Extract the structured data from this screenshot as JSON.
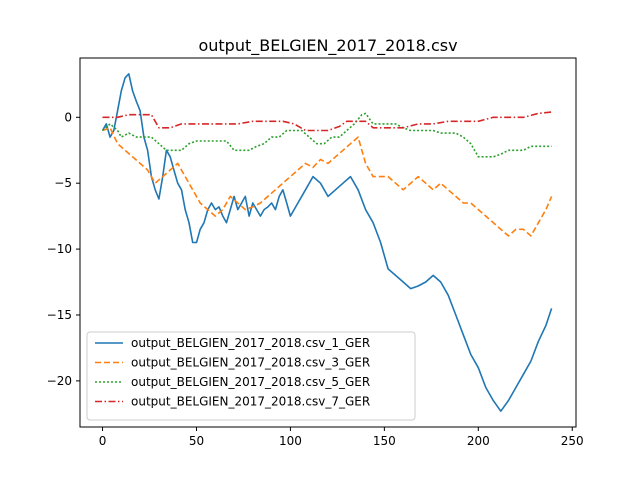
{
  "chart_data": {
    "type": "line",
    "title": "output_BELGIEN_2017_2018.csv",
    "xlabel": "",
    "ylabel": "",
    "xlim": [
      -12,
      252
    ],
    "ylim": [
      -23.5,
      4.5
    ],
    "xticks": [
      0,
      50,
      100,
      150,
      200,
      250
    ],
    "yticks": [
      0,
      -5,
      -10,
      -15,
      -20
    ],
    "xtick_labels": [
      "0",
      "50",
      "100",
      "150",
      "200",
      "250"
    ],
    "ytick_labels": [
      "0",
      "−5",
      "−10",
      "−15",
      "−20"
    ],
    "grid": false,
    "legend_position": "lower-left",
    "series": [
      {
        "name": "output_BELGIEN_2017_2018.csv_1_GER",
        "color": "#1f77b4",
        "style": "solid",
        "x": [
          0,
          2,
          4,
          6,
          8,
          10,
          12,
          14,
          16,
          18,
          20,
          22,
          24,
          26,
          28,
          30,
          32,
          34,
          36,
          38,
          40,
          42,
          44,
          46,
          48,
          50,
          52,
          54,
          56,
          58,
          60,
          62,
          64,
          66,
          68,
          70,
          72,
          74,
          76,
          78,
          80,
          82,
          84,
          86,
          88,
          90,
          92,
          94,
          96,
          98,
          100,
          104,
          108,
          112,
          116,
          120,
          124,
          128,
          132,
          136,
          140,
          144,
          148,
          152,
          156,
          160,
          164,
          168,
          172,
          176,
          180,
          184,
          188,
          192,
          196,
          200,
          204,
          208,
          212,
          216,
          220,
          224,
          228,
          232,
          236,
          239
        ],
        "y": [
          -1.0,
          -0.5,
          -1.5,
          -1.0,
          0.5,
          2.0,
          3.0,
          3.3,
          2.0,
          1.2,
          0.5,
          -1.5,
          -2.5,
          -4.5,
          -5.5,
          -6.2,
          -4.5,
          -2.5,
          -3.0,
          -4.0,
          -5.0,
          -5.5,
          -7.0,
          -8.0,
          -9.5,
          -9.5,
          -8.5,
          -8.0,
          -7.0,
          -6.5,
          -7.0,
          -6.8,
          -7.5,
          -8.0,
          -7.0,
          -6.0,
          -7.0,
          -6.5,
          -6.0,
          -7.5,
          -6.5,
          -7.0,
          -7.5,
          -7.0,
          -6.8,
          -6.5,
          -7.0,
          -6.0,
          -5.5,
          -6.5,
          -7.5,
          -6.5,
          -5.5,
          -4.5,
          -5.0,
          -6.0,
          -5.5,
          -5.0,
          -4.5,
          -5.5,
          -7.0,
          -8.0,
          -9.5,
          -11.5,
          -12.0,
          -12.5,
          -13.0,
          -12.8,
          -12.5,
          -12.0,
          -12.5,
          -13.5,
          -15.0,
          -16.5,
          -18.0,
          -19.0,
          -20.5,
          -21.5,
          -22.3,
          -21.5,
          -20.5,
          -19.5,
          -18.5,
          -17.0,
          -15.8,
          -14.5
        ]
      },
      {
        "name": "output_BELGIEN_2017_2018.csv_3_GER",
        "color": "#ff7f0e",
        "style": "dashed",
        "x": [
          0,
          4,
          8,
          12,
          16,
          20,
          24,
          28,
          32,
          36,
          40,
          44,
          48,
          52,
          56,
          60,
          64,
          68,
          72,
          76,
          80,
          84,
          88,
          92,
          96,
          100,
          104,
          108,
          112,
          116,
          120,
          124,
          128,
          132,
          136,
          140,
          144,
          148,
          152,
          156,
          160,
          164,
          168,
          172,
          176,
          180,
          184,
          188,
          192,
          196,
          200,
          204,
          208,
          212,
          216,
          220,
          224,
          228,
          232,
          236,
          239
        ],
        "y": [
          -1.0,
          -0.8,
          -2.0,
          -2.5,
          -3.0,
          -3.5,
          -4.0,
          -5.0,
          -4.5,
          -4.0,
          -3.5,
          -4.5,
          -5.5,
          -6.5,
          -7.0,
          -7.5,
          -7.0,
          -6.0,
          -6.5,
          -7.0,
          -6.8,
          -6.5,
          -6.0,
          -5.5,
          -5.0,
          -4.5,
          -4.0,
          -3.5,
          -3.8,
          -3.2,
          -3.5,
          -3.0,
          -2.5,
          -2.0,
          -1.5,
          -3.5,
          -4.5,
          -4.5,
          -4.5,
          -5.0,
          -5.5,
          -5.0,
          -4.5,
          -5.0,
          -5.5,
          -5.0,
          -5.5,
          -6.0,
          -6.5,
          -6.5,
          -7.0,
          -7.5,
          -8.0,
          -8.5,
          -9.0,
          -8.5,
          -8.5,
          -9.0,
          -8.0,
          -7.0,
          -6.0
        ]
      },
      {
        "name": "output_BELGIEN_2017_2018.csv_5_GER",
        "color": "#2ca02c",
        "style": "dotted",
        "x": [
          0,
          4,
          8,
          10,
          14,
          18,
          22,
          26,
          30,
          34,
          38,
          42,
          46,
          50,
          54,
          58,
          62,
          66,
          70,
          74,
          78,
          82,
          86,
          90,
          94,
          98,
          102,
          106,
          110,
          114,
          118,
          122,
          126,
          130,
          134,
          138,
          140,
          144,
          148,
          152,
          156,
          160,
          164,
          168,
          172,
          176,
          180,
          184,
          188,
          192,
          196,
          200,
          204,
          208,
          212,
          216,
          220,
          224,
          228,
          232,
          236,
          239
        ],
        "y": [
          -1.0,
          -0.5,
          -1.0,
          -1.5,
          -1.2,
          -1.5,
          -1.5,
          -1.5,
          -2.0,
          -2.5,
          -2.5,
          -2.5,
          -2.0,
          -1.8,
          -1.8,
          -1.8,
          -1.8,
          -1.8,
          -2.5,
          -2.5,
          -2.5,
          -2.2,
          -2.0,
          -1.5,
          -1.5,
          -1.0,
          -1.0,
          -1.0,
          -1.5,
          -2.0,
          -2.0,
          -1.5,
          -1.5,
          -1.0,
          -0.5,
          0.2,
          0.3,
          -0.5,
          -0.5,
          -0.5,
          -0.5,
          -0.8,
          -1.0,
          -1.0,
          -1.0,
          -1.0,
          -1.2,
          -1.2,
          -1.2,
          -1.5,
          -2.0,
          -3.0,
          -3.0,
          -3.0,
          -2.8,
          -2.5,
          -2.5,
          -2.5,
          -2.2,
          -2.2,
          -2.2,
          -2.2
        ]
      },
      {
        "name": "output_BELGIEN_2017_2018.csv_7_GER",
        "color": "#d62728",
        "style": "dashdot",
        "x": [
          0,
          8,
          14,
          20,
          26,
          30,
          36,
          42,
          48,
          56,
          64,
          72,
          80,
          88,
          96,
          102,
          108,
          114,
          120,
          126,
          130,
          136,
          140,
          144,
          150,
          156,
          160,
          168,
          176,
          184,
          192,
          200,
          208,
          216,
          224,
          232,
          239
        ],
        "y": [
          0.0,
          0.0,
          0.2,
          0.2,
          0.2,
          -0.8,
          -0.8,
          -0.5,
          -0.5,
          -0.5,
          -0.5,
          -0.5,
          -0.3,
          -0.3,
          -0.3,
          -0.5,
          -1.0,
          -1.0,
          -1.0,
          -0.7,
          -0.3,
          -0.3,
          -0.3,
          -0.8,
          -0.8,
          -0.8,
          -0.8,
          -0.5,
          -0.5,
          -0.3,
          -0.3,
          -0.3,
          0.0,
          0.0,
          0.0,
          0.3,
          0.4
        ]
      }
    ]
  }
}
